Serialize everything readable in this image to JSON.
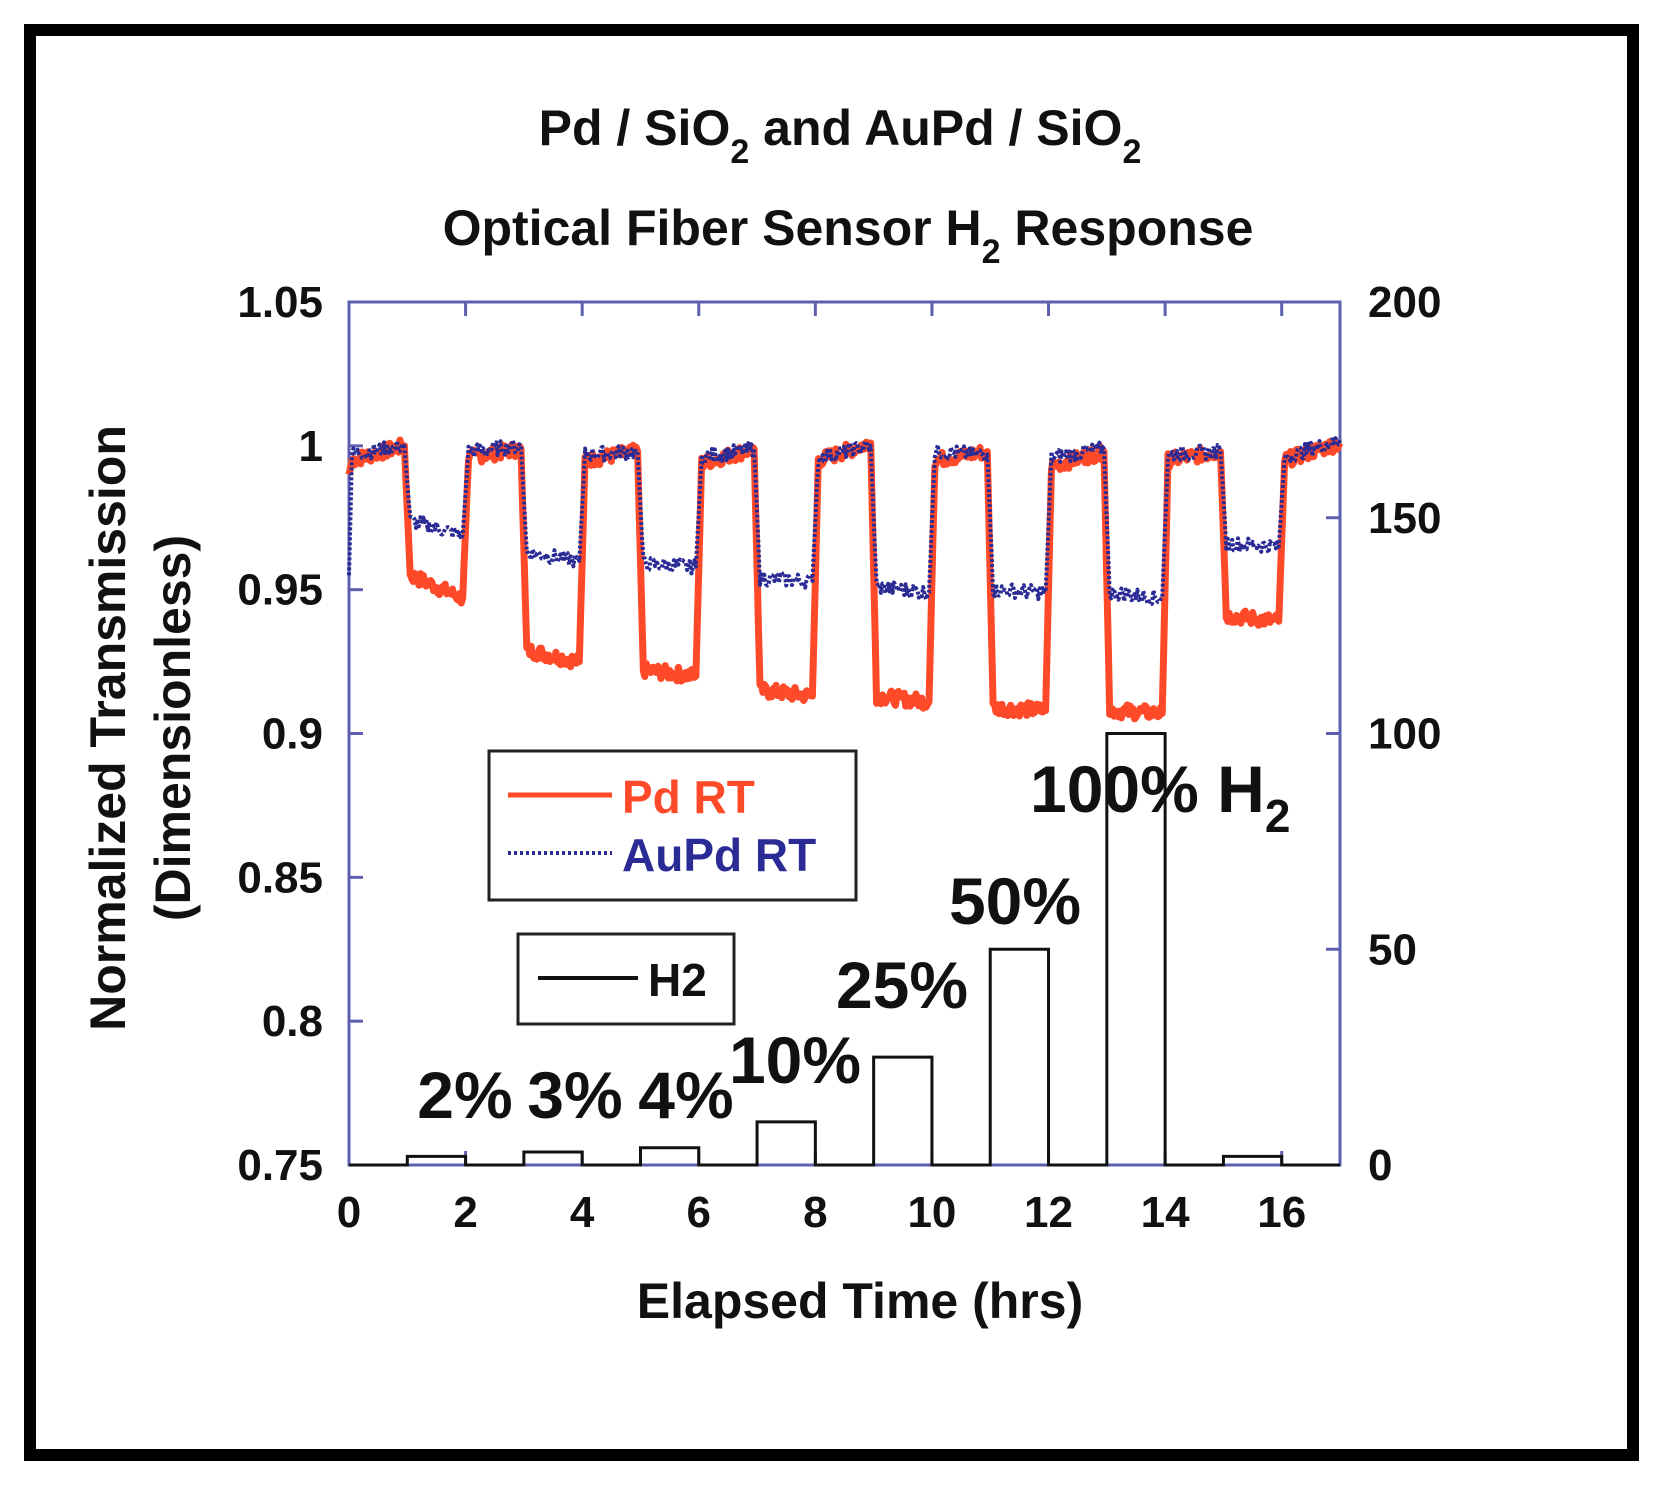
{
  "chart_data": {
    "type": "line",
    "title_lines": [
      {
        "parts": [
          "Pd / SiO",
          "2",
          " and AuPd / SiO",
          "2"
        ]
      },
      {
        "parts": [
          "Optical Fiber Sensor H",
          "2",
          " Response"
        ]
      }
    ],
    "xlabel": "Elapsed Time (hrs)",
    "ylabel_lines": [
      "Normalized Transmission",
      "(Dimensionless)"
    ],
    "xlim": [
      0,
      17
    ],
    "ylim": [
      0.75,
      1.05
    ],
    "y2lim": [
      0,
      200
    ],
    "x_ticks": [
      0,
      2,
      4,
      6,
      8,
      10,
      12,
      14,
      16
    ],
    "x_tick_labels": [
      "0",
      "2",
      "4",
      "6",
      "8",
      "10",
      "12",
      "14",
      "16"
    ],
    "y_ticks": [
      0.75,
      0.8,
      0.85,
      0.9,
      0.95,
      1.0,
      1.05
    ],
    "y_tick_labels": [
      "0.75",
      "0.8",
      "0.85",
      "0.9",
      "0.95",
      "1",
      "1.05"
    ],
    "y2_ticks": [
      0,
      50,
      100,
      150,
      200
    ],
    "y2_tick_labels": [
      "0",
      "50",
      "100",
      "150",
      "200"
    ],
    "x": [
      0,
      0.05,
      0.95,
      1.05,
      1.95,
      2.05,
      2.95,
      3.05,
      3.95,
      4.05,
      4.95,
      5.05,
      5.95,
      6.05,
      6.95,
      7.05,
      7.95,
      8.05,
      8.95,
      9.05,
      9.95,
      10.05,
      10.95,
      11.05,
      11.95,
      12.05,
      12.95,
      13.05,
      13.95,
      14.05,
      14.95,
      15.05,
      15.95,
      16.05,
      17
    ],
    "series": [
      {
        "name": "Pd RT",
        "color": "#ff4a2a",
        "style": "solid",
        "values": [
          0.99,
          0.995,
          1.0,
          0.955,
          0.947,
          0.996,
          0.999,
          0.929,
          0.925,
          0.995,
          0.998,
          0.922,
          0.92,
          0.994,
          0.999,
          0.915,
          0.913,
          0.995,
          1.001,
          0.913,
          0.911,
          0.995,
          0.998,
          0.909,
          0.908,
          0.993,
          0.998,
          0.908,
          0.907,
          0.995,
          0.998,
          0.941,
          0.939,
          0.995,
          1.001
        ]
      },
      {
        "name": "AuPd RT",
        "color": "#2b2b96",
        "style": "dotted",
        "values": [
          0.955,
          0.997,
          1.0,
          0.974,
          0.969,
          0.998,
          1.0,
          0.963,
          0.96,
          0.997,
          0.998,
          0.959,
          0.958,
          0.996,
          0.999,
          0.954,
          0.953,
          0.996,
          1.0,
          0.951,
          0.949,
          0.998,
          0.997,
          0.95,
          0.949,
          0.996,
          0.999,
          0.949,
          0.947,
          0.997,
          0.998,
          0.966,
          0.965,
          0.996,
          1.002
        ]
      }
    ],
    "h2_series": {
      "name": "H2",
      "color": "#111111",
      "axis": "right",
      "pulses": [
        {
          "start": 1,
          "end": 2,
          "value": 2
        },
        {
          "start": 3,
          "end": 4,
          "value": 3
        },
        {
          "start": 5,
          "end": 6,
          "value": 4
        },
        {
          "start": 7,
          "end": 8,
          "value": 10
        },
        {
          "start": 9,
          "end": 10,
          "value": 25
        },
        {
          "start": 11,
          "end": 12,
          "value": 50
        },
        {
          "start": 13,
          "end": 14,
          "value": 100
        },
        {
          "start": 15,
          "end": 16,
          "value": 2
        }
      ]
    },
    "annotations": [
      "2%",
      "3%",
      "4%",
      "10%",
      "25%",
      "50%",
      "100% H"
    ],
    "annotation_sub": "2",
    "legend": [
      "Pd RT",
      "AuPd RT",
      "H2"
    ],
    "axis_color": "#5b5fae"
  }
}
